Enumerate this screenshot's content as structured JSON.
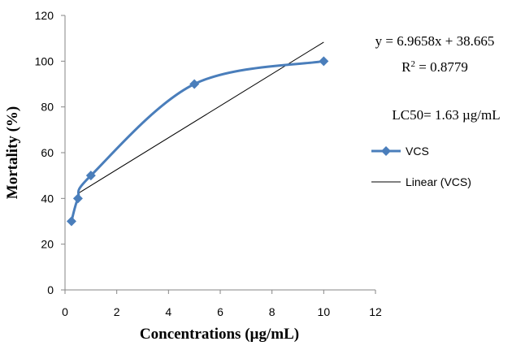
{
  "chart_data": {
    "type": "line",
    "xlabel": "Concentrations (µg/mL)",
    "ylabel": "Mortality (%)",
    "xlim": [
      0,
      12
    ],
    "ylim": [
      0,
      120
    ],
    "xticks": [
      "0",
      "2",
      "4",
      "6",
      "8",
      "10",
      "12"
    ],
    "yticks": [
      "0",
      "20",
      "40",
      "60",
      "80",
      "100",
      "120"
    ],
    "grid": false,
    "legend_position": "right",
    "series": [
      {
        "name": "VCS",
        "x": [
          0.25,
          0.5,
          1,
          5,
          10
        ],
        "y": [
          30,
          40,
          50,
          90,
          100
        ],
        "color": "#4a7ebb",
        "smooth": true,
        "marker": "diamond"
      },
      {
        "name": "Linear (VCS)",
        "trendline": {
          "slope": 6.9658,
          "intercept": 38.665,
          "x_range": [
            0.5,
            10
          ]
        },
        "color": "#000000"
      }
    ],
    "annotations": {
      "equation": "y = 6.9658x + 38.665",
      "r2_prefix": "R",
      "r2_sup": "2",
      "r2_value": " = 0.8779",
      "lc50": "LC50= 1.63 µg/mL"
    }
  }
}
